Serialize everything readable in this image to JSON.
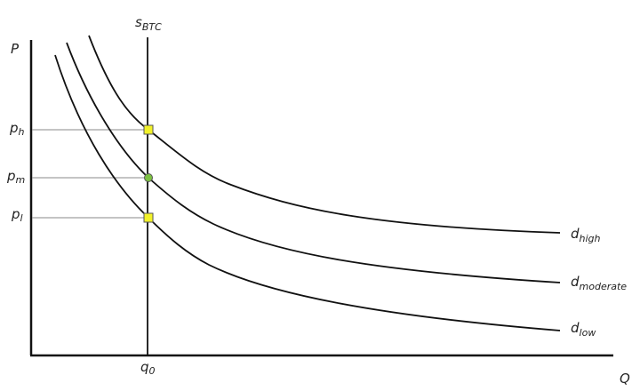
{
  "axes": {
    "y_label": "P",
    "x_label": "Q"
  },
  "supply": {
    "main": "s",
    "sub": "BTC"
  },
  "quantity": {
    "main": "q",
    "sub": "0"
  },
  "prices": [
    {
      "main": "p",
      "sub": "h"
    },
    {
      "main": "p",
      "sub": "m"
    },
    {
      "main": "p",
      "sub": "l"
    }
  ],
  "demand": [
    {
      "main": "d",
      "sub": "high"
    },
    {
      "main": "d",
      "sub": "moderate"
    },
    {
      "main": "d",
      "sub": "low"
    }
  ]
}
